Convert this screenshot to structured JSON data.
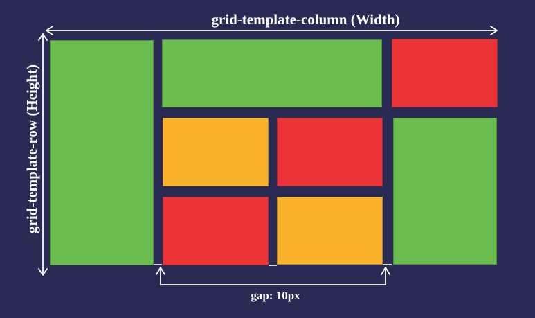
{
  "labels": {
    "columns_label": "grid-template-column (Width)",
    "rows_label": "grid-template-row (Height)",
    "gap_label": "gap: 10px"
  },
  "colors": {
    "background": "#2a2b55",
    "green": "#6cbd4f",
    "red": "#ea3437",
    "orange": "#fbb22c",
    "arrow": "#ffffff"
  },
  "cells": [
    {
      "id": "green-left",
      "color": "green"
    },
    {
      "id": "green-top",
      "color": "green"
    },
    {
      "id": "red-top-right",
      "color": "red"
    },
    {
      "id": "orange-mid-left",
      "color": "orange"
    },
    {
      "id": "red-mid-center",
      "color": "red"
    },
    {
      "id": "green-right",
      "color": "green"
    },
    {
      "id": "red-bottom-left",
      "color": "red"
    },
    {
      "id": "orange-bottom-center",
      "color": "orange"
    }
  ]
}
